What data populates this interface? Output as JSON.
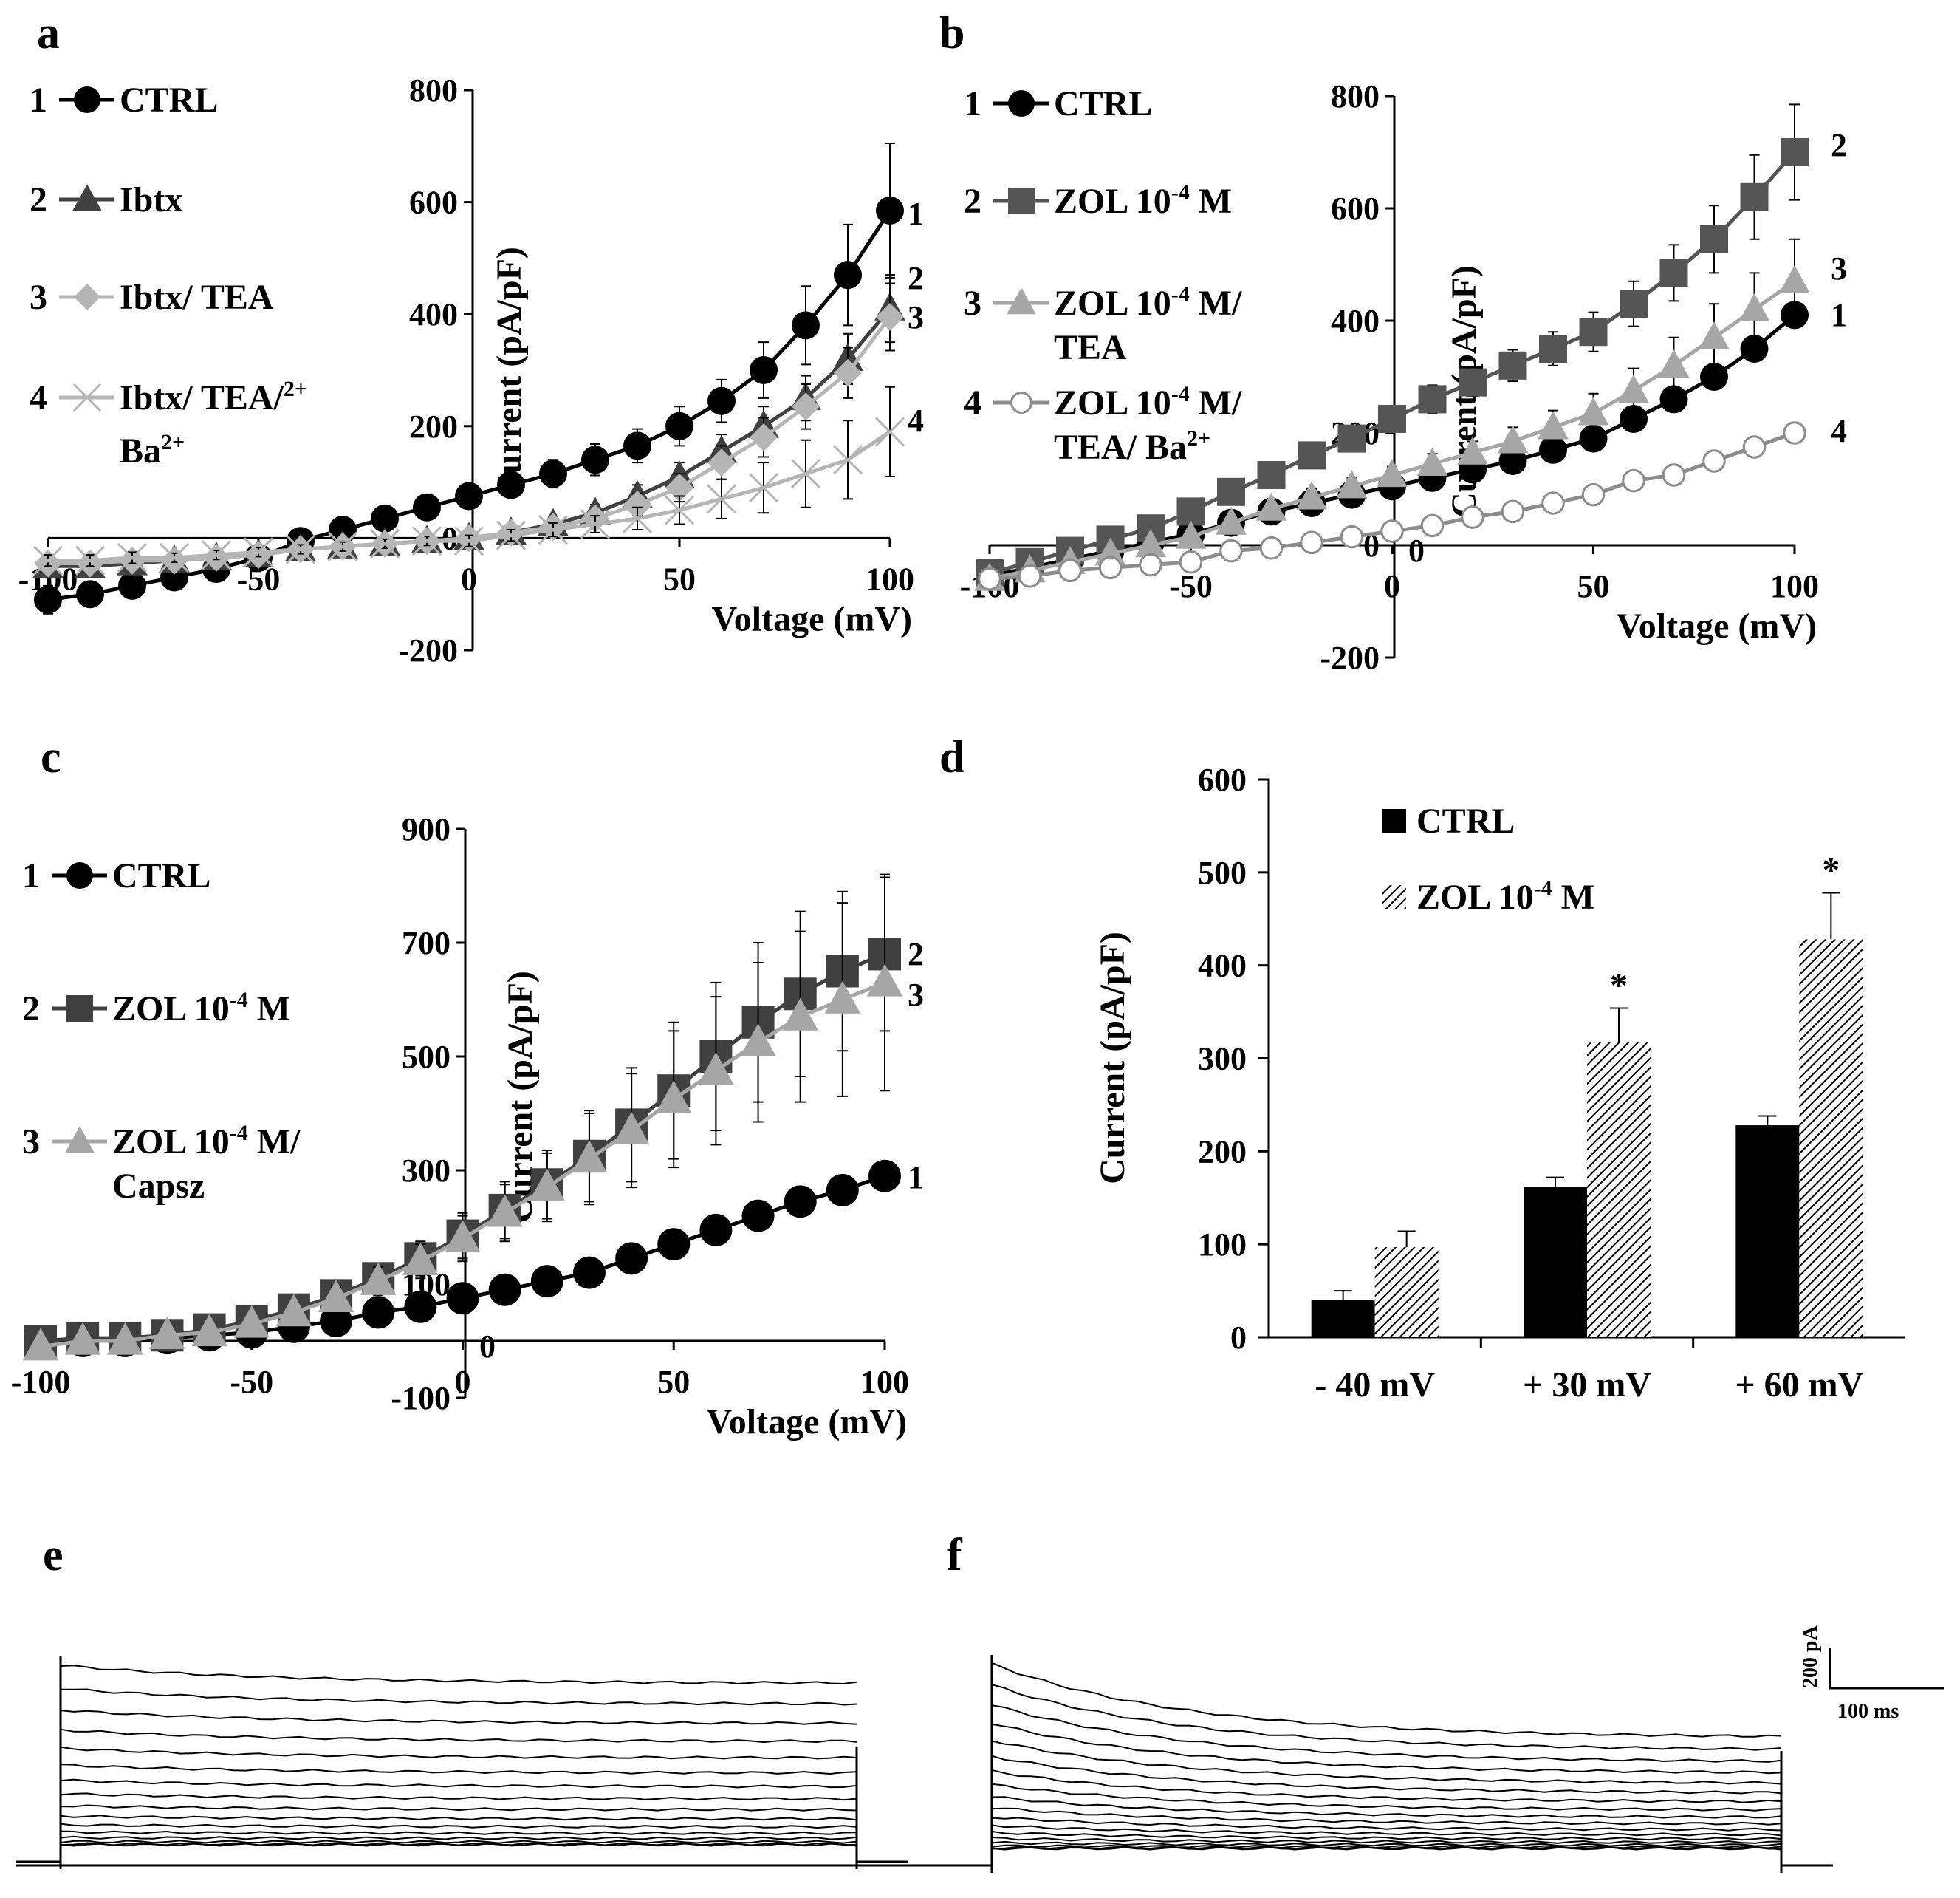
{
  "panels": {
    "a": {
      "letter": "a"
    },
    "b": {
      "letter": "b"
    },
    "c": {
      "letter": "c"
    },
    "d": {
      "letter": "d"
    },
    "e": {
      "letter": "e"
    },
    "f": {
      "letter": "f"
    }
  },
  "scale_bar": {
    "y_label": "200 pA",
    "x_label": "100 ms"
  },
  "chart_data": [
    {
      "id": "a",
      "type": "line",
      "xlabel": "Voltage (mV)",
      "ylabel": "Current (pA/pF)",
      "xlim": [
        -100,
        100
      ],
      "ylim": [
        -200,
        800
      ],
      "xticks": [
        -100,
        -50,
        0,
        50,
        100
      ],
      "yticks": [
        -200,
        0,
        200,
        400,
        600,
        800
      ],
      "x": [
        -100,
        -90,
        -80,
        -70,
        -60,
        -50,
        -40,
        -30,
        -20,
        -10,
        0,
        10,
        20,
        30,
        40,
        50,
        60,
        70,
        80,
        90,
        100
      ],
      "series": [
        {
          "num": "1",
          "name": "CTRL",
          "marker": "circle",
          "color": "#000000",
          "values": [
            -110,
            -100,
            -85,
            -70,
            -55,
            -35,
            -5,
            15,
            35,
            55,
            75,
            95,
            115,
            140,
            165,
            200,
            245,
            300,
            380,
            470,
            585
          ],
          "err": [
            25,
            20,
            18,
            15,
            12,
            10,
            10,
            12,
            15,
            18,
            20,
            20,
            25,
            28,
            30,
            35,
            38,
            50,
            70,
            90,
            120
          ]
        },
        {
          "num": "2",
          "name": "Ibtx",
          "marker": "triangle",
          "color": "#404040",
          "values": [
            -50,
            -50,
            -45,
            -40,
            -35,
            -30,
            -20,
            -15,
            -10,
            -5,
            0,
            10,
            25,
            45,
            75,
            110,
            155,
            200,
            250,
            320,
            410
          ],
          "err": [
            10,
            10,
            10,
            8,
            8,
            8,
            8,
            8,
            8,
            8,
            10,
            10,
            12,
            15,
            20,
            25,
            30,
            35,
            40,
            45,
            60
          ]
        },
        {
          "num": "3",
          "name": "Ibtx/ TEA",
          "marker": "diamond",
          "color": "#b5b5b5",
          "values": [
            -45,
            -45,
            -40,
            -40,
            -35,
            -30,
            -20,
            -15,
            -10,
            -5,
            0,
            10,
            20,
            35,
            60,
            90,
            135,
            180,
            235,
            295,
            395
          ],
          "err": [
            10,
            10,
            10,
            8,
            8,
            8,
            8,
            8,
            8,
            8,
            10,
            10,
            12,
            15,
            20,
            25,
            30,
            35,
            40,
            45,
            60
          ]
        },
        {
          "num": "4",
          "name": "Ibtx/ TEA/ Ba2+",
          "legend_main": "Ibtx/ TEA/",
          "legend_sub": "Ba",
          "legend_sup": "2+",
          "marker": "x",
          "color": "#b5b5b5",
          "values": [
            -40,
            -40,
            -35,
            -35,
            -30,
            -25,
            -20,
            -15,
            -10,
            -5,
            -5,
            5,
            15,
            25,
            35,
            50,
            70,
            90,
            115,
            140,
            190
          ],
          "err": [
            10,
            10,
            10,
            8,
            8,
            8,
            8,
            8,
            8,
            8,
            10,
            10,
            12,
            15,
            20,
            25,
            35,
            45,
            60,
            70,
            80
          ]
        }
      ],
      "end_labels": [
        "1",
        "2",
        "3",
        "4"
      ]
    },
    {
      "id": "b",
      "type": "line",
      "xlabel": "Voltage (mV)",
      "ylabel": "Current (pA/pF)",
      "xlim": [
        -100,
        100
      ],
      "ylim": [
        -200,
        800
      ],
      "xticks": [
        -100,
        -50,
        0,
        50,
        100
      ],
      "yticks": [
        -200,
        0,
        200,
        400,
        600,
        800
      ],
      "x": [
        -100,
        -90,
        -80,
        -70,
        -60,
        -50,
        -40,
        -30,
        -20,
        -10,
        0,
        10,
        20,
        30,
        40,
        50,
        60,
        70,
        80,
        90,
        100
      ],
      "series": [
        {
          "num": "1",
          "name": "CTRL",
          "marker": "circle",
          "color": "#000000",
          "values": [
            -55,
            -40,
            -25,
            -10,
            5,
            20,
            40,
            60,
            75,
            90,
            105,
            120,
            135,
            150,
            170,
            190,
            225,
            260,
            300,
            350,
            410
          ],
          "err": [
            8,
            8,
            8,
            8,
            8,
            8,
            8,
            10,
            10,
            10,
            10,
            12,
            12,
            12,
            15,
            15,
            15,
            15,
            18,
            18,
            20
          ]
        },
        {
          "num": "2",
          "name": "ZOL 10-4 M",
          "legend_main": "ZOL 10",
          "legend_sup": "-4",
          "legend_tail": " M",
          "marker": "square",
          "color": "#555555",
          "values": [
            -50,
            -30,
            -10,
            10,
            30,
            60,
            95,
            125,
            160,
            190,
            225,
            260,
            290,
            320,
            350,
            380,
            430,
            485,
            545,
            620,
            700
          ],
          "err": [
            10,
            10,
            10,
            12,
            12,
            12,
            15,
            15,
            18,
            20,
            20,
            25,
            25,
            28,
            30,
            35,
            40,
            50,
            60,
            75,
            85
          ]
        },
        {
          "num": "3",
          "name": "ZOL 10-4 M/ TEA",
          "legend_main": "ZOL 10",
          "legend_sup": "-4",
          "legend_tail": " M/",
          "legend_line2": "TEA",
          "marker": "triangle",
          "color": "#a6a6a6",
          "values": [
            -60,
            -45,
            -30,
            -15,
            0,
            15,
            40,
            65,
            85,
            105,
            125,
            145,
            165,
            185,
            210,
            235,
            275,
            320,
            370,
            420,
            470
          ],
          "err": [
            8,
            8,
            8,
            8,
            10,
            10,
            12,
            12,
            15,
            15,
            15,
            18,
            20,
            25,
            30,
            35,
            40,
            50,
            60,
            65,
            75
          ]
        },
        {
          "num": "4",
          "name": "ZOL 10-4 M/ TEA/ Ba2+",
          "legend_main": "ZOL 10",
          "legend_sup": "-4",
          "legend_tail": " M/",
          "legend_line2": "TEA/ Ba",
          "legend_line2_sup": "2+",
          "marker": "open-circle",
          "color": "#8c8c8c",
          "values": [
            -60,
            -55,
            -45,
            -40,
            -35,
            -30,
            -10,
            -5,
            5,
            15,
            25,
            35,
            50,
            60,
            75,
            90,
            115,
            125,
            150,
            175,
            200
          ],
          "err": [
            5,
            5,
            5,
            5,
            5,
            5,
            8,
            8,
            8,
            8,
            10,
            10,
            10,
            10,
            10,
            10,
            12,
            12,
            15,
            15,
            15
          ]
        }
      ],
      "end_labels": [
        "2",
        "3",
        "1",
        "4"
      ],
      "zero_label": "0"
    },
    {
      "id": "c",
      "type": "line",
      "xlabel": "Voltage (mV)",
      "ylabel": "Current (pA/pF)",
      "xlim": [
        -100,
        100
      ],
      "ylim": [
        -100,
        900
      ],
      "xticks": [
        -100,
        -50,
        0,
        50,
        100
      ],
      "yticks": [
        -100,
        100,
        300,
        500,
        700,
        900
      ],
      "x": [
        -100,
        -90,
        -80,
        -70,
        -60,
        -50,
        -40,
        -30,
        -20,
        -10,
        0,
        10,
        20,
        30,
        40,
        50,
        60,
        70,
        80,
        90,
        100
      ],
      "series": [
        {
          "num": "1",
          "name": "CTRL",
          "marker": "circle",
          "color": "#000000",
          "values": [
            0,
            0,
            0,
            5,
            10,
            15,
            25,
            35,
            50,
            60,
            75,
            90,
            105,
            120,
            145,
            170,
            195,
            220,
            245,
            265,
            290
          ],
          "err": [
            5,
            5,
            5,
            5,
            5,
            5,
            8,
            8,
            8,
            8,
            10,
            10,
            10,
            10,
            12,
            12,
            12,
            15,
            15,
            20,
            25
          ]
        },
        {
          "num": "2",
          "name": "ZOL 10-4 M",
          "legend_main": "ZOL 10",
          "legend_sup": "-4",
          "legend_tail": " M",
          "marker": "square",
          "color": "#404040",
          "values": [
            0,
            5,
            5,
            10,
            20,
            35,
            55,
            80,
            110,
            145,
            185,
            230,
            275,
            325,
            380,
            440,
            500,
            560,
            610,
            650,
            680
          ],
          "err": [
            10,
            10,
            10,
            10,
            12,
            12,
            15,
            20,
            25,
            30,
            40,
            50,
            60,
            80,
            100,
            120,
            130,
            140,
            145,
            140,
            135
          ]
        },
        {
          "num": "3",
          "name": "ZOL 10-4 M/ Capsz",
          "legend_main": "ZOL 10",
          "legend_sup": "-4",
          "legend_tail": " M/",
          "legend_line2": "Capsz",
          "marker": "triangle",
          "color": "#a6a6a6",
          "values": [
            -10,
            0,
            0,
            10,
            15,
            30,
            50,
            75,
            105,
            140,
            180,
            225,
            270,
            320,
            370,
            425,
            475,
            525,
            570,
            600,
            630
          ],
          "err": [
            10,
            10,
            10,
            10,
            12,
            12,
            15,
            20,
            25,
            30,
            40,
            50,
            60,
            80,
            100,
            120,
            130,
            140,
            150,
            170,
            190
          ]
        }
      ],
      "end_labels": [
        "2",
        "3",
        "1"
      ],
      "zero_label": "0"
    },
    {
      "id": "d",
      "type": "bar",
      "ylabel": "Current (pA/pF)",
      "ylim": [
        0,
        600
      ],
      "yticks": [
        0,
        100,
        200,
        300,
        400,
        500,
        600
      ],
      "categories": [
        "- 40 mV",
        "+ 30 mV",
        "+ 60 mV"
      ],
      "series": [
        {
          "name": "CTRL",
          "legend_main": "CTRL",
          "fill": "solid",
          "color": "#000000",
          "values": [
            40,
            162,
            228
          ],
          "err": [
            10,
            10,
            10
          ]
        },
        {
          "name": "ZOL 10-4 M",
          "legend_main": "ZOL 10",
          "legend_sup": "-4",
          "legend_tail": " M",
          "fill": "hatched",
          "color": "#000000",
          "values": [
            97,
            317,
            428
          ],
          "err": [
            17,
            37,
            50
          ]
        }
      ],
      "significance": [
        "",
        "*",
        "*"
      ]
    }
  ]
}
